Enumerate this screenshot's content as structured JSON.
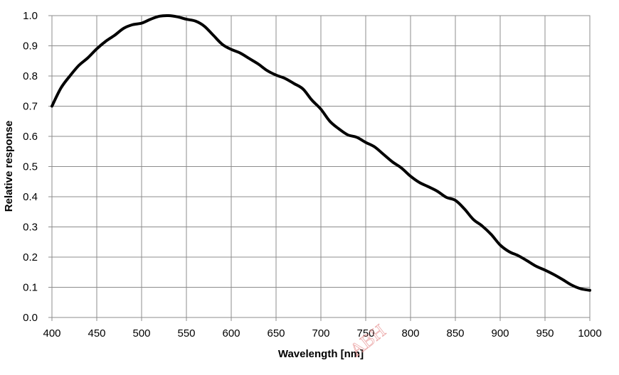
{
  "chart_data": {
    "type": "line",
    "title": "",
    "xlabel": "Wavelength [nm]",
    "ylabel": "Relative response",
    "xlim": [
      400,
      1000
    ],
    "ylim": [
      0.0,
      1.0
    ],
    "xticks": [
      400,
      450,
      500,
      550,
      600,
      650,
      700,
      750,
      800,
      850,
      900,
      950,
      1000
    ],
    "xtick_labels": [
      "400",
      "450",
      "500",
      "550",
      "600",
      "650",
      "700",
      "750",
      "800",
      "850",
      "900",
      "950",
      "1000"
    ],
    "yticks": [
      0.0,
      0.1,
      0.2,
      0.3,
      0.4,
      0.5,
      0.6,
      0.7,
      0.8,
      0.9,
      1.0
    ],
    "ytick_labels": [
      "0.0",
      "0.1",
      "0.2",
      "0.3",
      "0.4",
      "0.5",
      "0.6",
      "0.7",
      "0.8",
      "0.9",
      "1.0"
    ],
    "grid": true,
    "legend": "none",
    "series": [
      {
        "name": "Relative response",
        "color": "#000000",
        "x": [
          400,
          410,
          420,
          430,
          440,
          450,
          460,
          470,
          480,
          490,
          500,
          510,
          520,
          530,
          540,
          550,
          560,
          570,
          580,
          590,
          600,
          610,
          620,
          630,
          640,
          650,
          660,
          670,
          680,
          690,
          700,
          710,
          720,
          730,
          740,
          750,
          760,
          770,
          780,
          790,
          800,
          810,
          820,
          830,
          840,
          850,
          860,
          870,
          880,
          890,
          900,
          910,
          920,
          930,
          940,
          950,
          960,
          970,
          980,
          990,
          1000
        ],
        "y": [
          0.7,
          0.76,
          0.8,
          0.835,
          0.86,
          0.89,
          0.915,
          0.935,
          0.958,
          0.97,
          0.975,
          0.988,
          0.998,
          1.0,
          0.996,
          0.988,
          0.982,
          0.965,
          0.935,
          0.905,
          0.888,
          0.876,
          0.858,
          0.84,
          0.818,
          0.803,
          0.792,
          0.775,
          0.757,
          0.72,
          0.69,
          0.65,
          0.625,
          0.605,
          0.597,
          0.58,
          0.565,
          0.54,
          0.515,
          0.495,
          0.468,
          0.447,
          0.433,
          0.418,
          0.398,
          0.388,
          0.36,
          0.325,
          0.303,
          0.275,
          0.24,
          0.218,
          0.205,
          0.188,
          0.17,
          0.157,
          0.142,
          0.125,
          0.107,
          0.095,
          0.09
        ]
      }
    ]
  },
  "watermark": {
    "text": "ABH"
  }
}
